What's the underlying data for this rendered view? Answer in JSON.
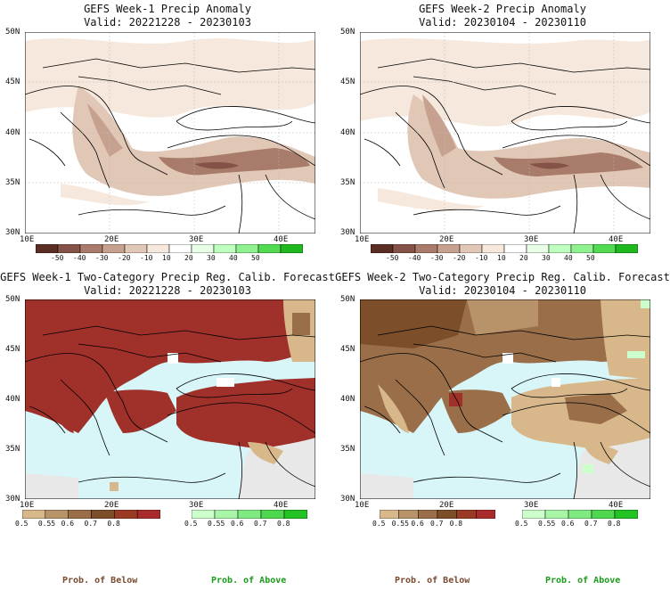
{
  "panels": [
    {
      "title1": "GEFS Week-1 Precip Anomaly",
      "title2": "Valid: 20221228 - 20230103"
    },
    {
      "title1": "GEFS Week-2 Precip Anomaly",
      "title2": "Valid: 20230104 - 20230110"
    },
    {
      "title1": "GEFS Week-1 Two-Category Precip Reg. Calib. Forecast",
      "title2": "Valid: 20221228 - 20230103"
    },
    {
      "title1": "GEFS Week-2 Two-Category Precip Reg. Calib. Forecast",
      "title2": "Valid: 20230104 - 20230110"
    }
  ],
  "axes": {
    "lat_labels": [
      "50N",
      "45N",
      "40N",
      "35N",
      "30N"
    ],
    "lon_labels": [
      "10E",
      "20E",
      "30E",
      "40E"
    ]
  },
  "anomaly_colorbar": {
    "labels": [
      "-50",
      "-40",
      "-30",
      "-20",
      "-10",
      "10",
      "20",
      "30",
      "40",
      "50"
    ],
    "colors": [
      "#5a2e22",
      "#855247",
      "#a87b6a",
      "#c7a18f",
      "#e1c7b6",
      "#f6e8dc",
      "#ffffff",
      "#e6ffe6",
      "#bfffbf",
      "#8ef08e",
      "#52db52",
      "#1fb81f"
    ]
  },
  "prob_below_colorbar": {
    "labels": [
      "0.5",
      "0.55",
      "0.6",
      "0.7",
      "0.8"
    ],
    "colors": [
      "#d8b88a",
      "#b8936a",
      "#9a6e48",
      "#7c4e2a",
      "#9b3a24",
      "#a82a2a"
    ]
  },
  "prob_above_colorbar": {
    "labels": [
      "0.5",
      "0.55",
      "0.6",
      "0.7",
      "0.8"
    ],
    "colors": [
      "#ccffcc",
      "#a8f5a8",
      "#7fea7f",
      "#4fd84f",
      "#22c322"
    ]
  },
  "captions": {
    "below": "Prob. of Below",
    "above": "Prob. of Above"
  },
  "colors": {
    "sea": "#d8f6f8",
    "land_below_strong": "#a0302a",
    "land_grey": "#e8e8e8"
  }
}
